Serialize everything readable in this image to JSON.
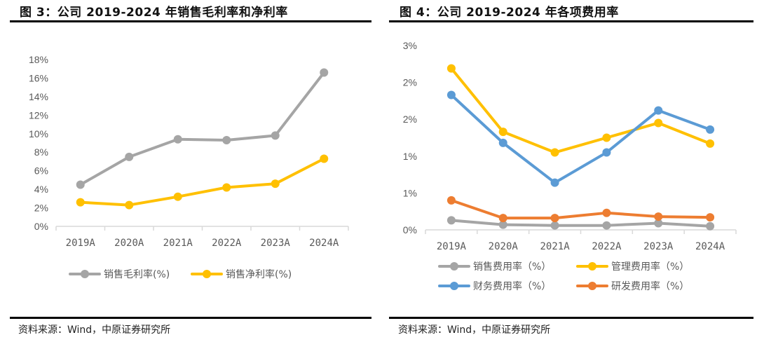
{
  "figures": [
    {
      "title": "图 3：公司 2019-2024 年销售毛利率和净利率",
      "source": "资料来源：Wind，中原证券研究所"
    },
    {
      "title": "图 4：公司 2019-2024 年各项费用率",
      "source": "资料来源：Wind，中原证券研究所"
    }
  ],
  "chart_data": [
    {
      "type": "line",
      "title": "公司 2019-2024 年销售毛利率和净利率",
      "categories": [
        "2019A",
        "2020A",
        "2021A",
        "2022A",
        "2023A",
        "2024A"
      ],
      "xlabel": "",
      "ylabel": "",
      "ylim": [
        0,
        18
      ],
      "yticks": [
        0,
        2,
        4,
        6,
        8,
        10,
        12,
        14,
        16,
        18
      ],
      "ytick_labels": [
        "0%",
        "2%",
        "4%",
        "6%",
        "8%",
        "10%",
        "12%",
        "14%",
        "16%",
        "18%"
      ],
      "grid": false,
      "legend_position": "bottom",
      "series": [
        {
          "name": "销售毛利率(%)",
          "color": "#A5A5A5",
          "values": [
            4.5,
            7.5,
            9.4,
            9.3,
            9.8,
            16.6
          ]
        },
        {
          "name": "销售净利率(%)",
          "color": "#FFC000",
          "values": [
            2.6,
            2.3,
            3.2,
            4.2,
            4.6,
            7.3
          ]
        }
      ]
    },
    {
      "type": "line",
      "title": "公司 2019-2024 年各项费用率",
      "categories": [
        "2019A",
        "2020A",
        "2021A",
        "2022A",
        "2023A",
        "2024A"
      ],
      "xlabel": "",
      "ylabel": "",
      "ylim": [
        0,
        2.5
      ],
      "yticks": [
        0,
        0.5,
        1.0,
        1.5,
        2.0,
        2.5
      ],
      "ytick_labels": [
        "0%",
        "1%",
        "1%",
        "2%",
        "2%",
        "3%"
      ],
      "grid": false,
      "legend_position": "bottom",
      "series": [
        {
          "name": "销售费用率（%）",
          "color": "#A5A5A5",
          "values": [
            0.13,
            0.07,
            0.06,
            0.06,
            0.09,
            0.05
          ]
        },
        {
          "name": "管理费用率（%）",
          "color": "#FFC000",
          "values": [
            2.19,
            1.33,
            1.05,
            1.25,
            1.45,
            1.17
          ]
        },
        {
          "name": "财务费用率（%）",
          "color": "#5B9BD5",
          "values": [
            1.83,
            1.18,
            0.64,
            1.05,
            1.62,
            1.36
          ]
        },
        {
          "name": "研发费用率（%）",
          "color": "#ED7D31",
          "values": [
            0.4,
            0.16,
            0.16,
            0.23,
            0.18,
            0.17
          ]
        }
      ]
    }
  ]
}
